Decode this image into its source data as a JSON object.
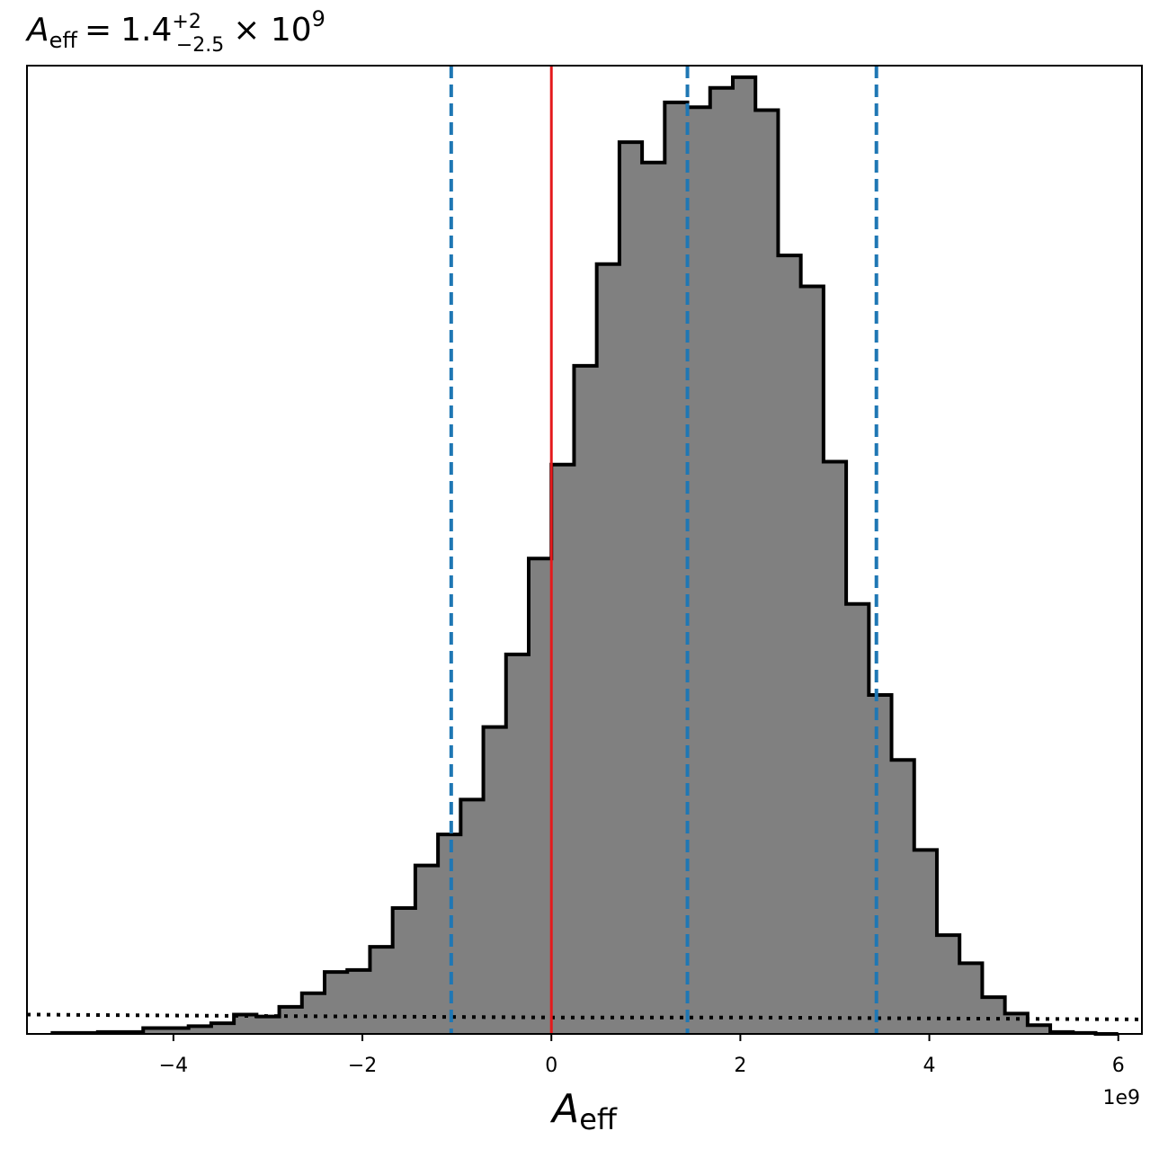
{
  "chart_data": {
    "type": "histogram",
    "title": {
      "symbol": "A",
      "subscript": "eff",
      "value": "1.4",
      "upper_error": "+2",
      "lower_error": "−2.5",
      "exponent_text": "× 10",
      "exponent": "9"
    },
    "xlabel": {
      "symbol": "A",
      "subscript": "eff"
    },
    "ylabel": "",
    "offset_text": "1e9",
    "xlim": [
      -5.55,
      6.25
    ],
    "ylim": [
      0,
      1.0
    ],
    "xticks": [
      -4,
      -2,
      0,
      2,
      4,
      6
    ],
    "xtick_labels": [
      "−4",
      "−2",
      "0",
      "2",
      "4",
      "6"
    ],
    "x_scale_factor": 1000000000.0,
    "grid": false,
    "histogram": {
      "fill_color": "#808080",
      "edge_color": "#000000",
      "bin_edges": [
        -5.28,
        -5.04,
        -4.8,
        -4.56,
        -4.32,
        -4.08,
        -3.84,
        -3.6,
        -3.36,
        -3.12,
        -2.88,
        -2.64,
        -2.4,
        -2.16,
        -1.92,
        -1.68,
        -1.44,
        -1.2,
        -0.96,
        -0.72,
        -0.48,
        -0.24,
        0.0,
        0.24,
        0.48,
        0.72,
        0.96,
        1.2,
        1.44,
        1.68,
        1.92,
        2.16,
        2.4,
        2.64,
        2.88,
        3.12,
        3.36,
        3.6,
        3.84,
        4.08,
        4.32,
        4.56,
        4.8,
        5.04,
        5.28,
        5.52,
        5.76,
        6.0
      ],
      "heights": [
        0.001,
        0.001,
        0.002,
        0.002,
        0.006,
        0.006,
        0.008,
        0.011,
        0.02,
        0.018,
        0.028,
        0.042,
        0.064,
        0.066,
        0.09,
        0.13,
        0.174,
        0.206,
        0.242,
        0.317,
        0.392,
        0.491,
        0.588,
        0.69,
        0.795,
        0.921,
        0.9,
        0.962,
        0.957,
        0.977,
        0.988,
        0.954,
        0.804,
        0.772,
        0.591,
        0.444,
        0.35,
        0.283,
        0.19,
        0.102,
        0.073,
        0.038,
        0.021,
        0.009,
        0.002,
        0.001,
        0.0
      ]
    },
    "reference_lines": [
      {
        "x": 0.0,
        "color": "#e41a1c",
        "style": "solid"
      },
      {
        "x": -1.06,
        "color": "#1f77b4",
        "style": "dashed"
      },
      {
        "x": 1.44,
        "color": "#1f77b4",
        "style": "dashed"
      },
      {
        "x": 3.44,
        "color": "#1f77b4",
        "style": "dashed"
      }
    ],
    "prior_curve": {
      "color": "#000000",
      "style": "dotted",
      "x": [
        -5.55,
        -4.0,
        -2.0,
        0.0,
        2.0,
        4.0,
        6.25
      ],
      "y": [
        0.02,
        0.019,
        0.018,
        0.017,
        0.017,
        0.016,
        0.015
      ]
    }
  }
}
